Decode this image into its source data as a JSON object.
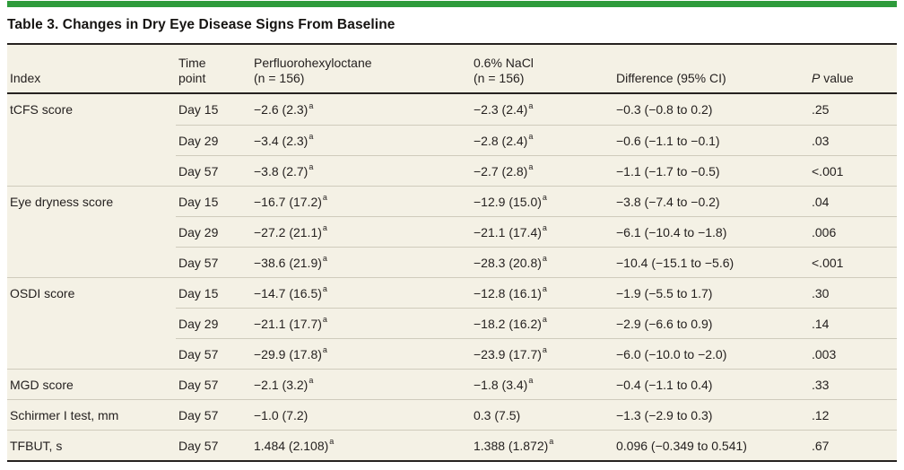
{
  "colors": {
    "accent_green": "#2E9B3B",
    "table_background": "#F4F1E5",
    "row_divider": "#CFCBBC",
    "heavy_rule": "#262220",
    "text": "#231F1E"
  },
  "title": "Table 3. Changes in Dry Eye Disease Signs From Baseline",
  "header": {
    "index": "Index",
    "time_line1": "Time",
    "time_line2": "point",
    "pfho_line1": "Perfluorohexyloctane",
    "pfho_line2": "(n = 156)",
    "nacl_line1": "0.6% NaCl",
    "nacl_line2": "(n = 156)",
    "difference": "Difference (95% CI)",
    "p_italic": "P",
    "p_rest": " value"
  },
  "table": {
    "rows": [
      {
        "index": "tCFS score",
        "group_start": true,
        "time": "Day 15",
        "pfho": "−2.6 (2.3)",
        "pfho_sup": "a",
        "nacl": "−2.3 (2.4)",
        "nacl_sup": "a",
        "diff": "−0.3 (−0.8 to 0.2)",
        "p": ".25"
      },
      {
        "index": "",
        "group_start": false,
        "time": "Day 29",
        "pfho": "−3.4 (2.3)",
        "pfho_sup": "a",
        "nacl": "−2.8 (2.4)",
        "nacl_sup": "a",
        "diff": "−0.6 (−1.1 to −0.1)",
        "p": ".03"
      },
      {
        "index": "",
        "group_start": false,
        "time": "Day 57",
        "pfho": "−3.8 (2.7)",
        "pfho_sup": "a",
        "nacl": "−2.7 (2.8)",
        "nacl_sup": "a",
        "diff": "−1.1 (−1.7 to −0.5)",
        "p": "<.001"
      },
      {
        "index": "Eye dryness score",
        "group_start": true,
        "time": "Day 15",
        "pfho": "−16.7 (17.2)",
        "pfho_sup": "a",
        "nacl": "−12.9 (15.0)",
        "nacl_sup": "a",
        "diff": "−3.8 (−7.4 to −0.2)",
        "p": ".04"
      },
      {
        "index": "",
        "group_start": false,
        "time": "Day 29",
        "pfho": "−27.2 (21.1)",
        "pfho_sup": "a",
        "nacl": "−21.1 (17.4)",
        "nacl_sup": "a",
        "diff": "−6.1 (−10.4 to −1.8)",
        "p": ".006"
      },
      {
        "index": "",
        "group_start": false,
        "time": "Day 57",
        "pfho": "−38.6 (21.9)",
        "pfho_sup": "a",
        "nacl": "−28.3 (20.8)",
        "nacl_sup": "a",
        "diff": "−10.4 (−15.1 to −5.6)",
        "p": "<.001"
      },
      {
        "index": "OSDI score",
        "group_start": true,
        "time": "Day 15",
        "pfho": "−14.7 (16.5)",
        "pfho_sup": "a",
        "nacl": "−12.8 (16.1)",
        "nacl_sup": "a",
        "diff": "−1.9 (−5.5 to 1.7)",
        "p": ".30"
      },
      {
        "index": "",
        "group_start": false,
        "time": "Day 29",
        "pfho": "−21.1 (17.7)",
        "pfho_sup": "a",
        "nacl": "−18.2 (16.2)",
        "nacl_sup": "a",
        "diff": "−2.9 (−6.6 to 0.9)",
        "p": ".14"
      },
      {
        "index": "",
        "group_start": false,
        "time": "Day 57",
        "pfho": "−29.9 (17.8)",
        "pfho_sup": "a",
        "nacl": "−23.9 (17.7)",
        "nacl_sup": "a",
        "diff": "−6.0 (−10.0 to −2.0)",
        "p": ".003"
      },
      {
        "index": "MGD score",
        "group_start": true,
        "time": "Day 57",
        "pfho": "−2.1 (3.2)",
        "pfho_sup": "a",
        "nacl": "−1.8 (3.4)",
        "nacl_sup": "a",
        "diff": "−0.4 (−1.1 to 0.4)",
        "p": ".33"
      },
      {
        "index": "Schirmer I test, mm",
        "group_start": true,
        "time": "Day 57",
        "pfho": "−1.0 (7.2)",
        "pfho_sup": "",
        "nacl": "0.3 (7.5)",
        "nacl_sup": "",
        "diff": "−1.3 (−2.9 to 0.3)",
        "p": ".12"
      },
      {
        "index": "TFBUT, s",
        "group_start": true,
        "time": "Day 57",
        "pfho": "1.484 (2.108)",
        "pfho_sup": "a",
        "nacl": "1.388 (1.872)",
        "nacl_sup": "a",
        "diff": "0.096 (−0.349 to 0.541)",
        "p": ".67"
      }
    ]
  }
}
